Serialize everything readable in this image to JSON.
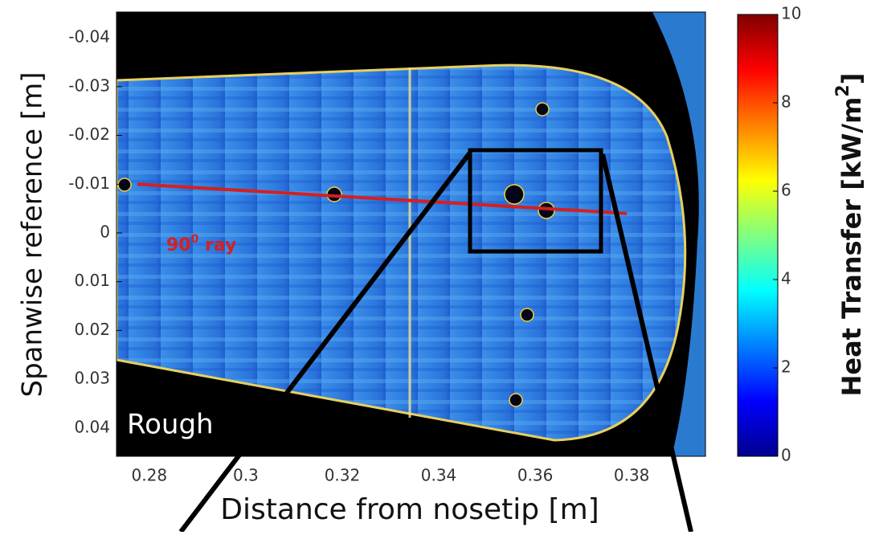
{
  "chart_data": {
    "type": "heatmap",
    "x_label": "Distance from nosetip [m]",
    "y_label": "Spanwise reference [m]",
    "xlim": [
      0.2732,
      0.3953
    ],
    "xticks": [
      0.28,
      0.3,
      0.32,
      0.34,
      0.36,
      0.38
    ],
    "ylim": [
      -0.0453,
      0.0458
    ],
    "yticks": [
      -0.04,
      -0.03,
      -0.02,
      -0.01,
      0,
      0.01,
      0.02,
      0.03,
      0.04
    ],
    "colorbar": {
      "label": {
        "base": "Heat Transfer [kW/m",
        "sup": "2",
        "rest": "]"
      },
      "lim": [
        0,
        10
      ],
      "ticks": [
        0,
        2,
        4,
        6,
        8,
        10
      ],
      "colors": [
        "#00008f",
        "#0000ff",
        "#0080ff",
        "#00ffff",
        "#80ff80",
        "#ffff00",
        "#ff8000",
        "#ff0000",
        "#800000"
      ]
    },
    "ray": {
      "label": {
        "base": "90",
        "sup": "0",
        "rest": " ray"
      },
      "color": "#d42020",
      "x": [
        0.2775,
        0.379
      ],
      "y": [
        -0.01,
        -0.004
      ]
    },
    "annotation": "Rough"
  }
}
